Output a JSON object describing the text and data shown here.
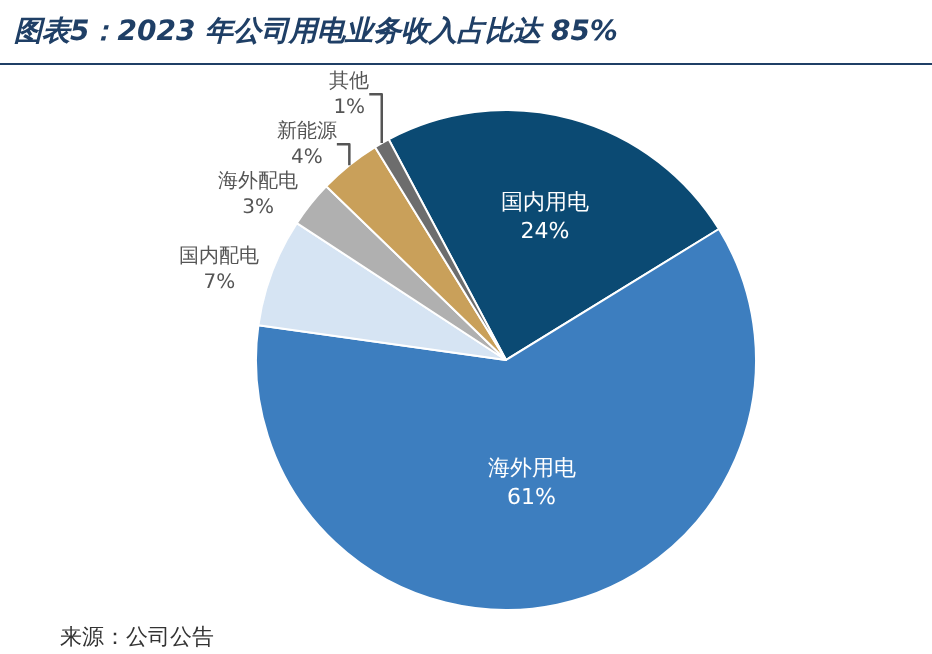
{
  "chart_data": {
    "type": "pie",
    "title": "图表5：2023 年公司用电业务收入占比达 85%",
    "categories": [
      "国内用电",
      "海外用电",
      "国内配电",
      "海外配电",
      "新能源",
      "其他"
    ],
    "values": [
      24,
      61,
      7,
      3,
      4,
      1
    ],
    "value_labels": [
      "24%",
      "61%",
      "7%",
      "3%",
      "4%",
      "1%"
    ],
    "colors": [
      "#0b4a73",
      "#3d7ebf",
      "#d6e4f3",
      "#b0b0b0",
      "#c9a05a",
      "#6d6d6d"
    ],
    "legend": false,
    "annotations": [
      "来源：公司公告"
    ]
  }
}
